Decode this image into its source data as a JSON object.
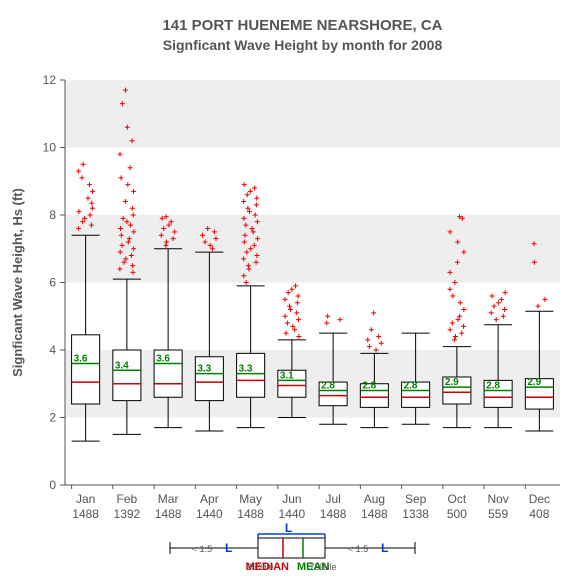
{
  "title1": "141   PORT HUENEME NEARSHORE, CA",
  "title2": "Signficant Wave Height by month for 2008",
  "ylabel": "Signficant Wave Height, Hs (ft)",
  "ylim": [
    0,
    12
  ],
  "yticks": [
    0,
    2,
    4,
    6,
    8,
    10,
    12
  ],
  "months": [
    "Jan",
    "Feb",
    "Mar",
    "Apr",
    "May",
    "Jun",
    "Jul",
    "Aug",
    "Sep",
    "Oct",
    "Nov",
    "Dec"
  ],
  "counts": [
    1488,
    1392,
    1488,
    1440,
    1488,
    1440,
    1488,
    1488,
    1338,
    500,
    559,
    408
  ],
  "plot": {
    "bg": "#ffffff",
    "band_color": "#eeeeee",
    "axis_color": "#555555",
    "box_stroke": "#000000",
    "whisker_color": "#000000",
    "median_color": "#cc0000",
    "mean_color": "#008000",
    "outlier_color": "#ee0000",
    "legend_brace_color": "#0040cc",
    "box_rel_width": 0.68
  },
  "boxes": [
    {
      "wlo": 1.3,
      "q1": 2.4,
      "med": 3.05,
      "mean": 3.6,
      "q3": 4.45,
      "whi": 7.4,
      "out": [
        7.6,
        7.7,
        7.8,
        7.9,
        8.0,
        8.1,
        8.2,
        8.35,
        8.5,
        8.7,
        8.9,
        9.1,
        9.3,
        9.5
      ]
    },
    {
      "wlo": 1.5,
      "q1": 2.5,
      "med": 3.0,
      "mean": 3.4,
      "q3": 4.0,
      "whi": 6.1,
      "out": [
        6.3,
        6.4,
        6.5,
        6.6,
        6.7,
        6.8,
        6.9,
        7.0,
        7.1,
        7.2,
        7.3,
        7.4,
        7.5,
        7.6,
        7.7,
        7.8,
        7.9,
        8.0,
        8.2,
        8.4,
        8.7,
        8.9,
        9.1,
        9.4,
        9.8,
        10.2,
        10.6,
        11.3,
        11.7
      ]
    },
    {
      "wlo": 1.7,
      "q1": 2.6,
      "med": 3.0,
      "mean": 3.6,
      "q3": 4.0,
      "whi": 7.0,
      "out": [
        7.1,
        7.2,
        7.3,
        7.4,
        7.5,
        7.6,
        7.7,
        7.8,
        7.9,
        7.95
      ]
    },
    {
      "wlo": 1.6,
      "q1": 2.5,
      "med": 3.05,
      "mean": 3.3,
      "q3": 3.8,
      "whi": 6.9,
      "out": [
        7.0,
        7.1,
        7.2,
        7.3,
        7.4,
        7.5,
        7.6
      ]
    },
    {
      "wlo": 1.7,
      "q1": 2.6,
      "med": 3.1,
      "mean": 3.3,
      "q3": 3.9,
      "whi": 5.9,
      "out": [
        6.0,
        6.2,
        6.4,
        6.5,
        6.6,
        6.7,
        6.8,
        6.9,
        7.0,
        7.1,
        7.2,
        7.3,
        7.4,
        7.5,
        7.6,
        7.7,
        7.8,
        7.9,
        8.0,
        8.1,
        8.2,
        8.3,
        8.4,
        8.5,
        8.6,
        8.7,
        8.8,
        8.9
      ]
    },
    {
      "wlo": 2.0,
      "q1": 2.6,
      "med": 2.95,
      "mean": 3.1,
      "q3": 3.4,
      "whi": 4.3,
      "out": [
        4.4,
        4.5,
        4.6,
        4.7,
        4.8,
        4.9,
        5.0,
        5.1,
        5.2,
        5.3,
        5.4,
        5.5,
        5.6,
        5.7,
        5.8,
        5.9
      ]
    },
    {
      "wlo": 1.8,
      "q1": 2.35,
      "med": 2.65,
      "mean": 2.8,
      "q3": 3.05,
      "whi": 4.5,
      "out": [
        4.8,
        4.9,
        5.0
      ]
    },
    {
      "wlo": 1.7,
      "q1": 2.3,
      "med": 2.6,
      "mean": 2.8,
      "q3": 3.0,
      "whi": 3.9,
      "out": [
        4.0,
        4.1,
        4.2,
        4.3,
        4.4,
        4.6,
        5.1
      ]
    },
    {
      "wlo": 1.8,
      "q1": 2.3,
      "med": 2.6,
      "mean": 2.8,
      "q3": 3.05,
      "whi": 4.5,
      "out": []
    },
    {
      "wlo": 1.7,
      "q1": 2.4,
      "med": 2.75,
      "mean": 2.9,
      "q3": 3.2,
      "whi": 4.1,
      "out": [
        4.3,
        4.4,
        4.5,
        4.6,
        4.7,
        4.8,
        4.9,
        5.0,
        5.2,
        5.4,
        5.6,
        5.8,
        6.0,
        6.3,
        6.6,
        6.9,
        7.2,
        7.5,
        7.9,
        7.95
      ]
    },
    {
      "wlo": 1.7,
      "q1": 2.3,
      "med": 2.6,
      "mean": 2.8,
      "q3": 3.1,
      "whi": 4.75,
      "out": [
        4.9,
        5.0,
        5.1,
        5.2,
        5.3,
        5.4,
        5.5,
        5.6,
        5.7
      ]
    },
    {
      "wlo": 1.6,
      "q1": 2.25,
      "med": 2.6,
      "mean": 2.9,
      "q3": 3.15,
      "whi": 5.15,
      "out": [
        5.3,
        5.5,
        6.6,
        7.15
      ]
    }
  ],
  "legend": {
    "median": "MEDIAN",
    "mean": "MEAN",
    "p25": "25%ile",
    "p75": "75%ile",
    "L": "L",
    "k15a": "< 1.5",
    "k15b": "< 1.5"
  }
}
